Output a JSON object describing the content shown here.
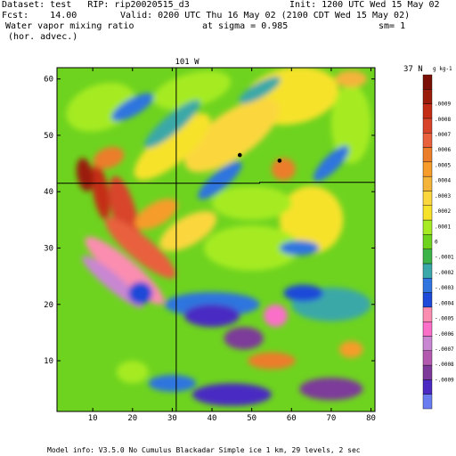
{
  "header": {
    "dataset": "Dataset: test   RIP: rip20020515_d3",
    "init": "Init: 1200 UTC Wed 15 May 02",
    "fcst": "Fcst:    14.00",
    "valid": "Valid: 0200 UTC Thu 16 May 02 (2100 CDT Wed 15 May 02)",
    "field": "Water vapor mixing ratio",
    "sigma": "at sigma = 0.985",
    "sm": "sm= 1",
    "advec": "(hor. advec.)"
  },
  "footer": {
    "model_info": "Model info: V3.5.0 No Cumulus Blackadar  Simple ice    1 km,  29 levels,     2 sec"
  },
  "colors": {
    "bg": "#ffffff",
    "ink": "#000000",
    "scale": [
      "#6a7df0",
      "#4a2ac2",
      "#7d3a9a",
      "#b35ab0",
      "#c986d2",
      "#fa6fc8",
      "#fb8db0",
      "#1d4ad8",
      "#2f74df",
      "#3aa8a8",
      "#3cb44a",
      "#6ed31f",
      "#a6eb23",
      "#f7e22a",
      "#fbd73d",
      "#f4b43a",
      "#f69c2a",
      "#ec7d2a",
      "#e8603c",
      "#d8442a",
      "#c42d15",
      "#9a1c0a",
      "#7a1005"
    ]
  },
  "chart_data": {
    "type": "heatmap",
    "title": "Water vapor mixing ratio",
    "xlim": [
      1,
      81
    ],
    "ylim": [
      1,
      62
    ],
    "x_ticks": [
      10,
      20,
      30,
      40,
      50,
      60,
      70,
      80
    ],
    "y_ticks": [
      10,
      20,
      30,
      40,
      50,
      60
    ],
    "longitude_label": "101 W",
    "latitude_label": "37 N",
    "colorbar_unit": "g kg-1",
    "colorbar_labels": [
      ".0009",
      ".0008",
      ".0007",
      ".0006",
      ".0005",
      ".0004",
      ".0003",
      ".0002",
      ".0001",
      "0",
      "-.0001",
      "-.0002",
      "-.0003",
      "-.0004",
      "-.0005",
      "-.0006",
      "-.0007",
      "-.0008",
      "-.0009"
    ],
    "colorbar_range": [
      -0.0009,
      0.0009
    ],
    "meridian_x": 31,
    "parallel_y": 41.5,
    "markers": [
      [
        47,
        46.5
      ],
      [
        57,
        45.5
      ]
    ]
  }
}
